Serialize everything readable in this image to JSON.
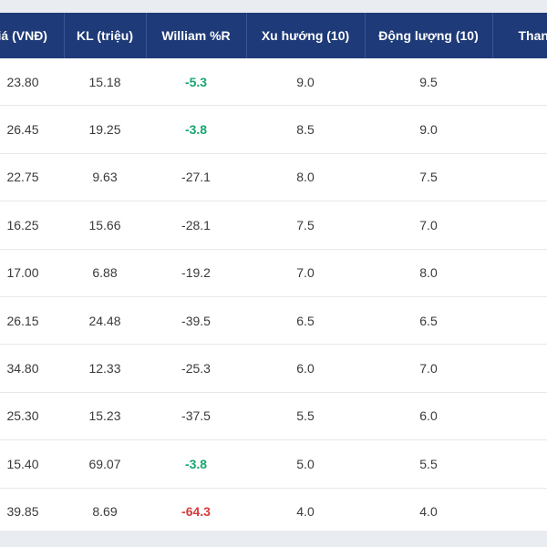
{
  "colors": {
    "header_bg": "#1e3a78",
    "header_text": "#ffffff",
    "positive": "#17a66f",
    "negative": "#d63b3b",
    "neutral": "#3a3a3a"
  },
  "table": {
    "headers": [
      "iá (VNĐ)",
      "KL (triệu)",
      "William %R",
      "Xu hướng (10)",
      "Động lượng (10)",
      "Thanh"
    ],
    "rows": [
      {
        "price": "23.80",
        "volume": "15.18",
        "williams": "-5.3",
        "williams_tone": "pos",
        "trend": "9.0",
        "momentum": "9.5",
        "liquidity": ""
      },
      {
        "price": "26.45",
        "volume": "19.25",
        "williams": "-3.8",
        "williams_tone": "pos",
        "trend": "8.5",
        "momentum": "9.0",
        "liquidity": ""
      },
      {
        "price": "22.75",
        "volume": "9.63",
        "williams": "-27.1",
        "williams_tone": "neutral",
        "trend": "8.0",
        "momentum": "7.5",
        "liquidity": ""
      },
      {
        "price": "16.25",
        "volume": "15.66",
        "williams": "-28.1",
        "williams_tone": "neutral",
        "trend": "7.5",
        "momentum": "7.0",
        "liquidity": ""
      },
      {
        "price": "17.00",
        "volume": "6.88",
        "williams": "-19.2",
        "williams_tone": "neutral",
        "trend": "7.0",
        "momentum": "8.0",
        "liquidity": ""
      },
      {
        "price": "26.15",
        "volume": "24.48",
        "williams": "-39.5",
        "williams_tone": "neutral",
        "trend": "6.5",
        "momentum": "6.5",
        "liquidity": ""
      },
      {
        "price": "34.80",
        "volume": "12.33",
        "williams": "-25.3",
        "williams_tone": "neutral",
        "trend": "6.0",
        "momentum": "7.0",
        "liquidity": ""
      },
      {
        "price": "25.30",
        "volume": "15.23",
        "williams": "-37.5",
        "williams_tone": "neutral",
        "trend": "5.5",
        "momentum": "6.0",
        "liquidity": ""
      },
      {
        "price": "15.40",
        "volume": "69.07",
        "williams": "-3.8",
        "williams_tone": "pos",
        "trend": "5.0",
        "momentum": "5.5",
        "liquidity": ""
      },
      {
        "price": "39.85",
        "volume": "8.69",
        "williams": "-64.3",
        "williams_tone": "neg",
        "trend": "4.0",
        "momentum": "4.0",
        "liquidity": ""
      }
    ]
  }
}
